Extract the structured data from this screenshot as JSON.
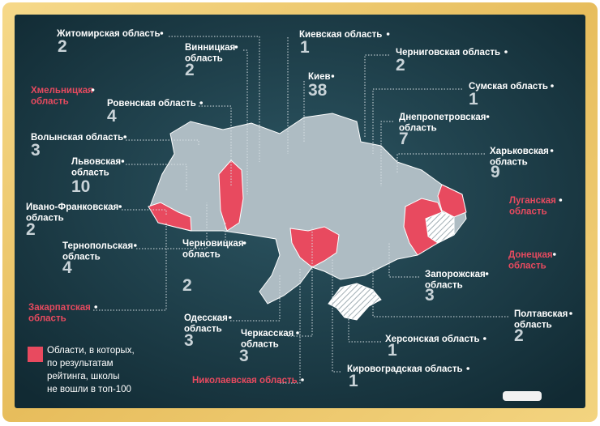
{
  "regions": [
    {
      "name": [
        "Житомирская область"
      ],
      "count": 2
    },
    {
      "name": [
        "Винницкая",
        "область"
      ],
      "count": 2
    },
    {
      "name": [
        "Киевская область"
      ],
      "count": 1
    },
    {
      "name": [
        "Черниговская область"
      ],
      "count": 2
    },
    {
      "name": [
        "Киев"
      ],
      "count": 38
    },
    {
      "name": [
        "Сумская область"
      ],
      "count": 1
    },
    {
      "name": [
        "Хмельницкая",
        "область"
      ],
      "excluded": true
    },
    {
      "name": [
        "Ровенская область"
      ],
      "count": 4
    },
    {
      "name": [
        "Днепропетровская",
        "область"
      ],
      "count": 7
    },
    {
      "name": [
        "Волынская область"
      ],
      "count": 3
    },
    {
      "name": [
        "Харьковская",
        "область"
      ],
      "count": 9
    },
    {
      "name": [
        "Львовская",
        "область"
      ],
      "count": 10
    },
    {
      "name": [
        "Луганская",
        "область"
      ],
      "excluded": true
    },
    {
      "name": [
        "Ивано-Франковская",
        "область"
      ],
      "count": 2
    },
    {
      "name": [
        "Тернопольская",
        "область"
      ],
      "count": 4
    },
    {
      "name": [
        "Донецкая",
        "область"
      ],
      "excluded": true
    },
    {
      "name": [
        "Черновицкая",
        "область"
      ],
      "count": 2
    },
    {
      "name": [
        "Запорожская",
        "область"
      ],
      "count": 3
    },
    {
      "name": [
        "Закарпатская",
        "область"
      ],
      "excluded": true
    },
    {
      "name": [
        "Полтавская",
        "область"
      ],
      "count": 2
    },
    {
      "name": [
        "Одесская",
        "область"
      ],
      "count": 3
    },
    {
      "name": [
        "Черкасская",
        "область"
      ],
      "count": 3
    },
    {
      "name": [
        "Херсонская область"
      ],
      "count": 1
    },
    {
      "name": [
        "Кировоградская область"
      ],
      "count": 1
    },
    {
      "name": [
        "Николаевская область"
      ],
      "excluded": true
    }
  ],
  "legend": [
    "Области, в которых,",
    "по результатам",
    "рейтинга, школы",
    "не вошли в топ-100"
  ]
}
